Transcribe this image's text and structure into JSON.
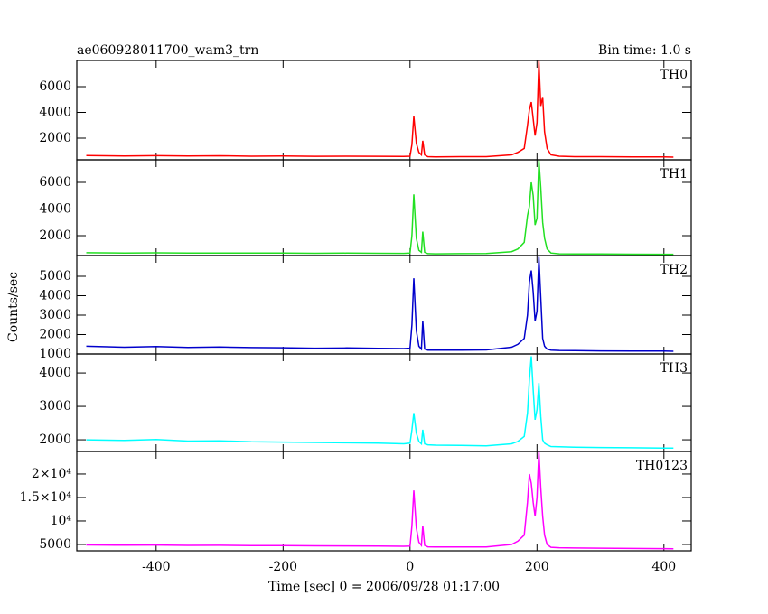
{
  "chart_data": {
    "type": "line",
    "title": "ae060928011700_wam3_trn",
    "subtitle": "Bin time: 1.0 s",
    "xlabel": "Time [sec] 0 = 2006/09/28 01:17:00",
    "ylabel": "Counts/sec",
    "xlim": [
      -525,
      443
    ],
    "xticks": [
      -400,
      -200,
      0,
      200,
      400
    ],
    "x": [
      -510,
      -450,
      -400,
      -350,
      -300,
      -250,
      -200,
      -150,
      -100,
      -50,
      -10,
      0,
      3,
      6,
      10,
      14,
      18,
      20,
      23,
      28,
      40,
      80,
      120,
      160,
      170,
      180,
      185,
      188,
      191,
      194,
      197,
      200,
      203,
      206,
      209,
      212,
      216,
      222,
      235,
      260,
      300,
      350,
      400,
      415
    ],
    "series": [
      {
        "name": "TH0",
        "color": "#ff0000",
        "ylim": [
          316,
          8035
        ],
        "yticks": [
          2000,
          4000,
          6000
        ],
        "values": [
          650,
          620,
          640,
          610,
          630,
          600,
          620,
          590,
          600,
          590,
          580,
          600,
          1500,
          3700,
          1600,
          900,
          700,
          1800,
          700,
          560,
          550,
          560,
          560,
          700,
          900,
          1200,
          3000,
          4200,
          4800,
          3500,
          2200,
          3200,
          8000,
          4500,
          5200,
          2500,
          1200,
          700,
          600,
          560,
          560,
          540,
          540,
          530
        ]
      },
      {
        "name": "TH1",
        "color": "#22e022",
        "ylim": [
          508,
          7695
        ],
        "yticks": [
          2000,
          4000,
          6000
        ],
        "values": [
          720,
          700,
          710,
          690,
          700,
          690,
          700,
          680,
          690,
          680,
          670,
          690,
          2000,
          5100,
          1800,
          900,
          750,
          2300,
          750,
          650,
          640,
          650,
          660,
          800,
          1000,
          1500,
          3500,
          4200,
          6000,
          5000,
          2800,
          3300,
          7700,
          5600,
          3000,
          1800,
          1000,
          700,
          640,
          620,
          620,
          610,
          600,
          600
        ]
      },
      {
        "name": "TH2",
        "color": "#0000cc",
        "ylim": [
          1000,
          6070
        ],
        "yticks": [
          1000,
          2000,
          3000,
          4000,
          5000
        ],
        "values": [
          1400,
          1350,
          1380,
          1340,
          1360,
          1330,
          1320,
          1300,
          1310,
          1290,
          1280,
          1300,
          2500,
          4900,
          2200,
          1400,
          1250,
          2700,
          1250,
          1200,
          1200,
          1200,
          1210,
          1350,
          1500,
          1800,
          3000,
          4700,
          5300,
          4200,
          2700,
          3200,
          6000,
          3900,
          1800,
          1400,
          1250,
          1200,
          1180,
          1170,
          1160,
          1150,
          1150,
          1140
        ]
      },
      {
        "name": "TH3",
        "color": "#00ffff",
        "ylim": [
          1650,
          4570
        ],
        "yticks": [
          2000,
          3000,
          4000
        ],
        "values": [
          2000,
          1980,
          2010,
          1960,
          1970,
          1940,
          1930,
          1920,
          1910,
          1900,
          1880,
          1900,
          2300,
          2800,
          2200,
          1950,
          1880,
          2300,
          1880,
          1850,
          1840,
          1830,
          1820,
          1880,
          1950,
          2100,
          2800,
          3800,
          4500,
          3500,
          2600,
          2900,
          3700,
          2700,
          2000,
          1900,
          1850,
          1800,
          1790,
          1780,
          1770,
          1760,
          1750,
          1750
        ]
      },
      {
        "name": "TH0123",
        "color": "#ff00ff",
        "ylim": [
          3650,
          24800
        ],
        "yticks": [
          5000,
          {
            "value": 10000,
            "label": "10⁴"
          },
          {
            "value": 15000,
            "label": "1.5×10⁴"
          },
          {
            "value": 20000,
            "label": "2×10⁴"
          }
        ],
        "values": [
          4900,
          4850,
          4880,
          4800,
          4820,
          4760,
          4740,
          4700,
          4690,
          4650,
          4620,
          4650,
          9000,
          16500,
          8500,
          5500,
          4800,
          9000,
          4800,
          4500,
          4450,
          4450,
          4450,
          5000,
          5700,
          7000,
          14000,
          20000,
          18000,
          14000,
          11000,
          15000,
          24800,
          17000,
          11000,
          7000,
          5000,
          4400,
          4300,
          4250,
          4200,
          4150,
          4120,
          4100
        ]
      }
    ]
  }
}
